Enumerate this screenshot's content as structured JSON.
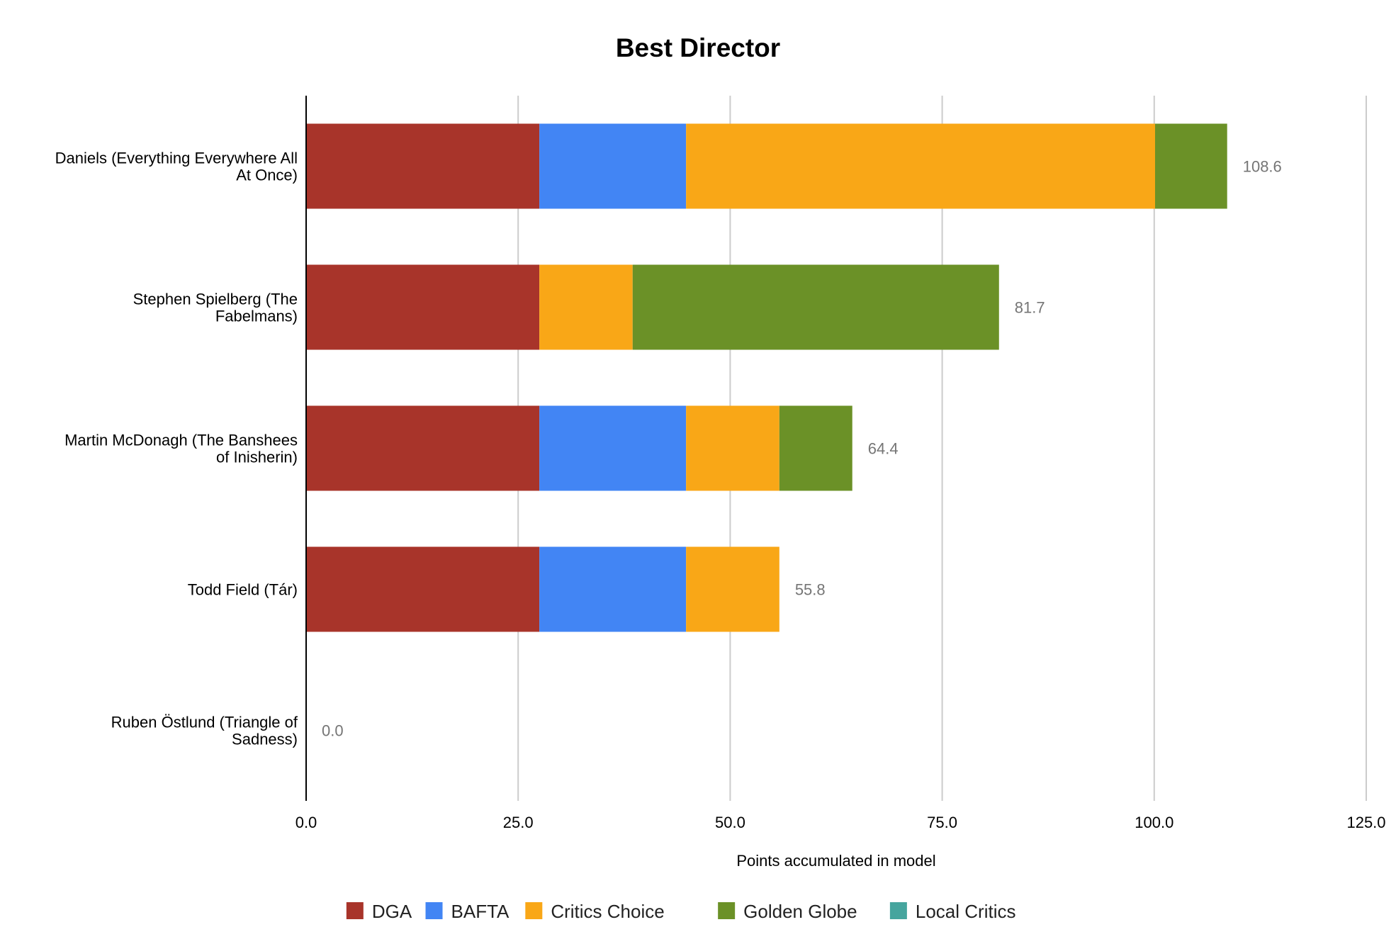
{
  "chart_data": {
    "type": "bar",
    "orientation": "horizontal",
    "stacked": true,
    "title": "Best Director",
    "xlabel": "Points accumulated in model",
    "ylabel": "",
    "xlim": [
      0,
      125
    ],
    "x_ticks": [
      0,
      25,
      50,
      75,
      100,
      125
    ],
    "x_tick_labels": [
      "0.0",
      "25.0",
      "50.0",
      "75.0",
      "100.0",
      "125.0"
    ],
    "grid": true,
    "legend_position": "bottom",
    "categories": [
      "Daniels (Everything Everywhere All At Once)",
      "Stephen Spielberg (The Fabelmans)",
      "Martin McDonagh (The Banshees of Inisherin)",
      "Todd Field (Tár)",
      "Ruben Östlund (Triangle of Sadness)"
    ],
    "category_label_lines": [
      [
        "Daniels (Everything Everywhere All",
        "At Once)"
      ],
      [
        "Stephen Spielberg (The",
        "Fabelmans)"
      ],
      [
        "Martin McDonagh (The Banshees",
        "of Inisherin)"
      ],
      [
        "Todd Field (Tár)"
      ],
      [
        "Ruben Östlund (Triangle of",
        "Sadness)"
      ]
    ],
    "series": [
      {
        "name": "DGA",
        "color": "#a8342a",
        "values": [
          27.5,
          27.5,
          27.5,
          27.5,
          0
        ]
      },
      {
        "name": "BAFTA",
        "color": "#4285f4",
        "values": [
          17.3,
          0,
          17.3,
          17.3,
          0
        ]
      },
      {
        "name": "Critics Choice",
        "color": "#f9a717",
        "values": [
          55.3,
          11.0,
          11.0,
          11.0,
          0
        ]
      },
      {
        "name": "Golden Globe",
        "color": "#6b9127",
        "values": [
          8.5,
          43.2,
          8.6,
          0,
          0
        ]
      },
      {
        "name": "Local Critics",
        "color": "#46a59e",
        "values": [
          0,
          0,
          0,
          0,
          0
        ]
      }
    ],
    "totals": [
      108.6,
      81.7,
      64.4,
      55.8,
      0.0
    ],
    "total_labels": [
      "108.6",
      "81.7",
      "64.4",
      "55.8",
      "0.0"
    ]
  }
}
